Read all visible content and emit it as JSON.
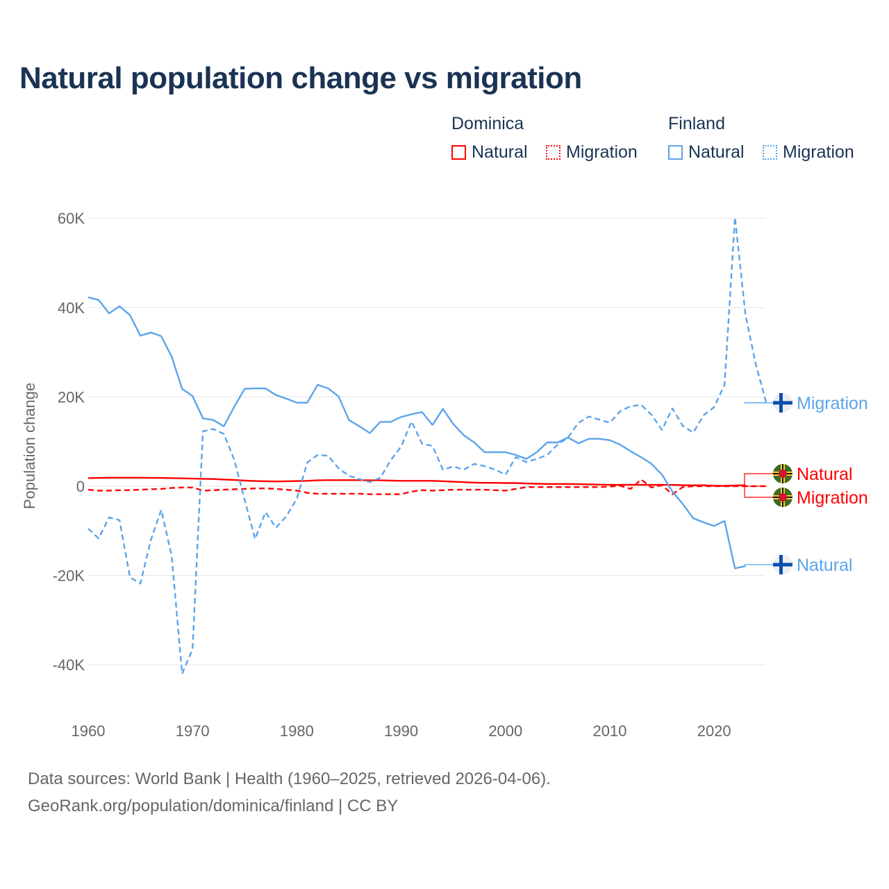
{
  "title": "Natural population change vs migration",
  "legend": {
    "groups": [
      {
        "name": "Dominica",
        "items": [
          "Natural",
          "Migration"
        ]
      },
      {
        "name": "Finland",
        "items": [
          "Natural",
          "Migration"
        ]
      }
    ]
  },
  "footer": {
    "line1": "Data sources: World Bank | Health (1960–2025, retrieved 2026-04-06).",
    "line2": "GeoRank.org/population/dominica/finland | CC BY"
  },
  "colors": {
    "dominica": "#ff0000",
    "finland": "#5ba4ea",
    "grid": "#e6e6e6",
    "text": "#666666",
    "title": "#1a3354"
  },
  "chart_data": {
    "type": "line",
    "title": "Natural population change vs migration",
    "xlabel": "",
    "ylabel": "Population change",
    "xlim": [
      1960,
      2025
    ],
    "ylim": [
      -50000,
      65000
    ],
    "x_ticks": [
      1960,
      1970,
      1980,
      1990,
      2000,
      2010,
      2020
    ],
    "x_tick_labels": [
      "1960",
      "1970",
      "1980",
      "1990",
      "2000",
      "2010",
      "2020"
    ],
    "y_ticks": [
      -40000,
      -20000,
      0,
      20000,
      40000,
      60000
    ],
    "y_tick_labels": [
      "-40K",
      "-20K",
      "0",
      "20K",
      "40K",
      "60K"
    ],
    "grid": true,
    "legend_position": "top-right",
    "series": [
      {
        "name": "Dominica Natural",
        "country": "Dominica",
        "kind": "Natural",
        "label": "Natural",
        "color": "#ff0000",
        "dash": false,
        "start_year": 1960,
        "values_k": [
          1.8,
          1.85,
          1.9,
          1.9,
          1.9,
          1.9,
          1.85,
          1.85,
          1.8,
          1.75,
          1.7,
          1.65,
          1.6,
          1.5,
          1.4,
          1.25,
          1.15,
          1.1,
          1.05,
          1.1,
          1.15,
          1.2,
          1.3,
          1.35,
          1.35,
          1.35,
          1.35,
          1.3,
          1.3,
          1.25,
          1.2,
          1.2,
          1.2,
          1.2,
          1.1,
          1.0,
          0.9,
          0.8,
          0.75,
          0.75,
          0.7,
          0.7,
          0.6,
          0.55,
          0.5,
          0.5,
          0.5,
          0.45,
          0.4,
          0.35,
          0.3,
          0.3,
          0.3,
          0.3,
          0.3,
          0.3,
          0.3,
          0.2,
          0.2,
          0.2,
          0.1,
          0.1,
          0.15,
          0.2
        ]
      },
      {
        "name": "Dominica Migration",
        "country": "Dominica",
        "kind": "Migration",
        "label": "Migration",
        "color": "#ff0000",
        "dash": true,
        "start_year": 1960,
        "values_k": [
          -0.8,
          -1.0,
          -1.0,
          -0.9,
          -0.9,
          -0.8,
          -0.7,
          -0.6,
          -0.4,
          -0.3,
          -0.3,
          -1.0,
          -0.9,
          -0.8,
          -0.7,
          -0.6,
          -0.5,
          -0.5,
          -0.6,
          -0.8,
          -1.0,
          -1.5,
          -1.7,
          -1.7,
          -1.7,
          -1.7,
          -1.7,
          -1.8,
          -1.8,
          -1.8,
          -1.8,
          -1.2,
          -0.9,
          -1.0,
          -0.9,
          -0.8,
          -0.8,
          -0.8,
          -0.8,
          -0.9,
          -1.0,
          -0.6,
          -0.2,
          -0.2,
          -0.2,
          -0.2,
          -0.2,
          -0.2,
          -0.2,
          -0.2,
          -0.1,
          0.1,
          -0.6,
          1.5,
          -0.3,
          0.2,
          -1.8,
          -0.2,
          0,
          0,
          0,
          0,
          0,
          0,
          0,
          0
        ]
      },
      {
        "name": "Finland Natural",
        "country": "Finland",
        "kind": "Natural",
        "label": "Natural",
        "color": "#5ba4ea",
        "dash": false,
        "start_year": 1960,
        "values_k": [
          42.3,
          41.7,
          38.7,
          40.3,
          38.3,
          33.7,
          34.4,
          33.6,
          29.0,
          21.8,
          20.2,
          15.2,
          14.8,
          13.4,
          17.8,
          21.8,
          21.9,
          21.9,
          20.4,
          19.6,
          18.7,
          18.7,
          22.7,
          21.9,
          20.1,
          14.8,
          13.4,
          11.9,
          14.4,
          14.4,
          15.5,
          16.1,
          16.6,
          13.7,
          17.3,
          13.9,
          11.4,
          9.8,
          7.6,
          7.6,
          7.6,
          7.0,
          6.1,
          7.6,
          9.8,
          9.8,
          10.9,
          9.6,
          10.6,
          10.6,
          10.3,
          9.3,
          7.8,
          6.5,
          5.0,
          2.6,
          -1.2,
          -4.0,
          -7.2,
          -8.1,
          -8.9,
          -7.8,
          -18.4,
          -17.9
        ]
      },
      {
        "name": "Finland Migration",
        "country": "Finland",
        "kind": "Migration",
        "label": "Migration",
        "color": "#5ba4ea",
        "dash": true,
        "start_year": 1960,
        "values_k": [
          -9.5,
          -11.7,
          -7.0,
          -7.6,
          -20.4,
          -21.8,
          -12.1,
          -5.3,
          -15.6,
          -42.0,
          -36.5,
          12.3,
          12.8,
          11.7,
          5.9,
          -3.1,
          -11.8,
          -5.8,
          -9.3,
          -6.7,
          -2.8,
          5.3,
          7.0,
          6.8,
          4.0,
          2.3,
          1.6,
          0.9,
          1.9,
          5.8,
          8.9,
          14.5,
          9.5,
          9.0,
          3.7,
          4.4,
          3.7,
          5.0,
          4.5,
          3.7,
          2.6,
          6.5,
          5.4,
          6.1,
          7.0,
          9.3,
          10.9,
          14.2,
          15.6,
          14.9,
          14.2,
          16.8,
          17.9,
          18.2,
          16.0,
          12.6,
          17.4,
          13.5,
          12.0,
          15.9,
          17.7,
          22.7,
          60.2,
          38.4,
          27.2,
          18.7
        ]
      }
    ]
  }
}
